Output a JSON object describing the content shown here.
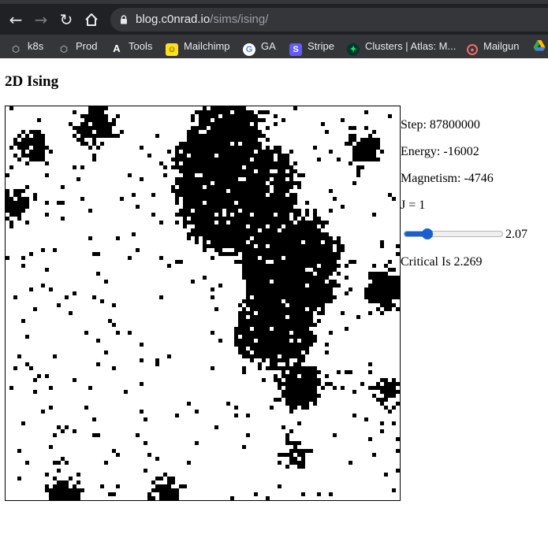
{
  "browser": {
    "url_host": "blog.c0nrad.io",
    "url_path": "/sims/ising/",
    "nav_icons": [
      "back-icon",
      "forward-icon",
      "reload-icon",
      "home-icon"
    ],
    "bookmarks": [
      {
        "label": "k8s",
        "icon": "k8s-icon",
        "color": "#9aa0a6"
      },
      {
        "label": "Prod",
        "icon": "k8s-icon",
        "color": "#9aa0a6"
      },
      {
        "label": "Tools",
        "icon": "tools-icon",
        "color": "#ffffff"
      },
      {
        "label": "Mailchimp",
        "icon": "mailchimp-icon",
        "color": "#ffe01b"
      },
      {
        "label": "GA",
        "icon": "google-icon",
        "color": "#ffffff"
      },
      {
        "label": "Stripe",
        "icon": "stripe-icon",
        "color": "#635bff"
      },
      {
        "label": "Clusters | Atlas: M...",
        "icon": "mongodb-icon",
        "color": "#00ed64"
      },
      {
        "label": "Mailgun",
        "icon": "mailgun-icon",
        "color": "#f06b66"
      }
    ]
  },
  "page": {
    "title": "2D Ising",
    "step_label": "Step: 87800000",
    "energy_label": "Energy: -16002",
    "magnetism_label": "Magnetism: -4746",
    "j_label": "J = 1",
    "temperature": {
      "value": "2.07",
      "fraction": 0.24
    },
    "critical_label": "Critical Is 2.269"
  },
  "colors": {
    "spin_down": "#000000",
    "spin_up": "#ffffff",
    "slider_accent": "#1a5fd0"
  }
}
